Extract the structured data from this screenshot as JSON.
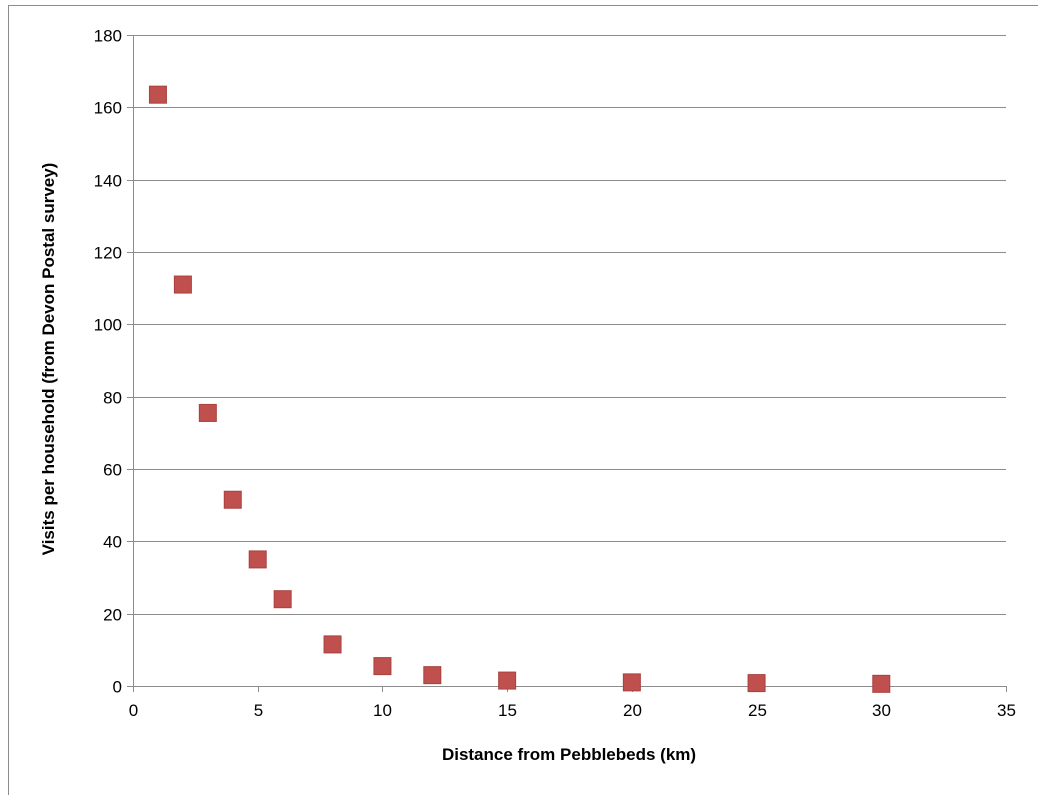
{
  "chart_data": {
    "type": "scatter",
    "title": "",
    "xlabel": "Distance from Pebblebeds (km)",
    "ylabel": "Visits per household (from Devon Postal survey)",
    "xlim": [
      0,
      35
    ],
    "ylim": [
      0,
      180
    ],
    "x_ticks": [
      0,
      5,
      10,
      15,
      20,
      25,
      30,
      35
    ],
    "y_ticks": [
      0,
      20,
      40,
      60,
      80,
      100,
      120,
      140,
      160,
      180
    ],
    "grid": "horizontal",
    "legend": "none",
    "marker": "square",
    "marker_color": "#c0504d",
    "series": [
      {
        "x": [
          1,
          2,
          3,
          4,
          5,
          6,
          8,
          10,
          12,
          15,
          20,
          25,
          30
        ],
        "y": [
          163.5,
          111,
          75.5,
          51.5,
          35,
          24,
          11.5,
          5.5,
          3,
          1.5,
          1,
          0.8,
          0.6
        ]
      }
    ]
  }
}
